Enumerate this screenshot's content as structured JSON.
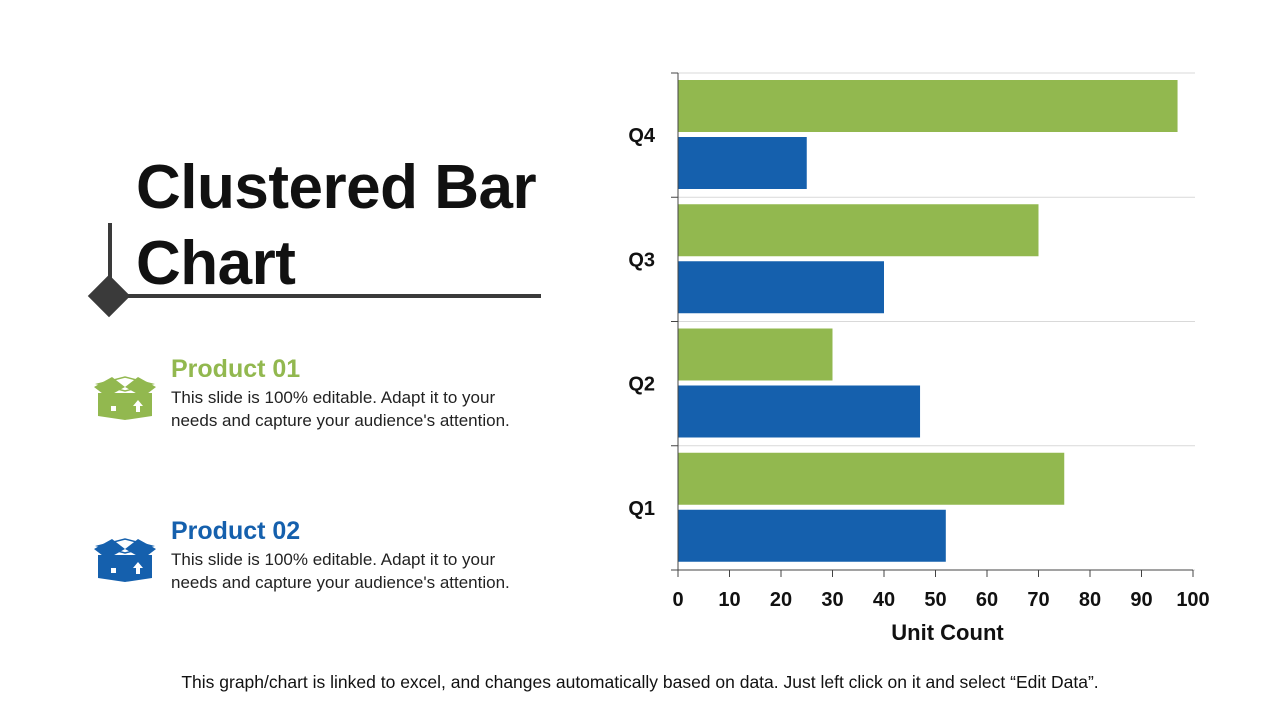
{
  "slide": {
    "title": "Clustered Bar Chart",
    "footer": "This graph/chart is linked to excel, and changes automatically based on data. Just left click on it and select “Edit Data”."
  },
  "legend": [
    {
      "name": "Product 01",
      "color": "#92b84f",
      "icon": "open-box-icon",
      "description": "This slide is 100% editable. Adapt it to your needs and capture your audience's attention."
    },
    {
      "name": "Product 02",
      "color": "#1560ad",
      "icon": "open-box-icon",
      "description": "This slide is 100% editable. Adapt it to your needs and capture your audience's attention."
    }
  ],
  "chart_data": {
    "type": "bar",
    "orientation": "horizontal",
    "categories": [
      "Q1",
      "Q2",
      "Q3",
      "Q4"
    ],
    "series": [
      {
        "name": "Product 01",
        "color": "#92b84f",
        "values": [
          75,
          30,
          70,
          97
        ]
      },
      {
        "name": "Product 02",
        "color": "#1560ad",
        "values": [
          52,
          47,
          40,
          25
        ]
      }
    ],
    "title": "",
    "xlabel": "Unit Count",
    "ylabel": "",
    "xlim": [
      0,
      100
    ],
    "xticks": [
      "0",
      "10",
      "20",
      "30",
      "40",
      "50",
      "60",
      "70",
      "80",
      "90",
      "100"
    ],
    "grid": true,
    "legend": "left"
  }
}
